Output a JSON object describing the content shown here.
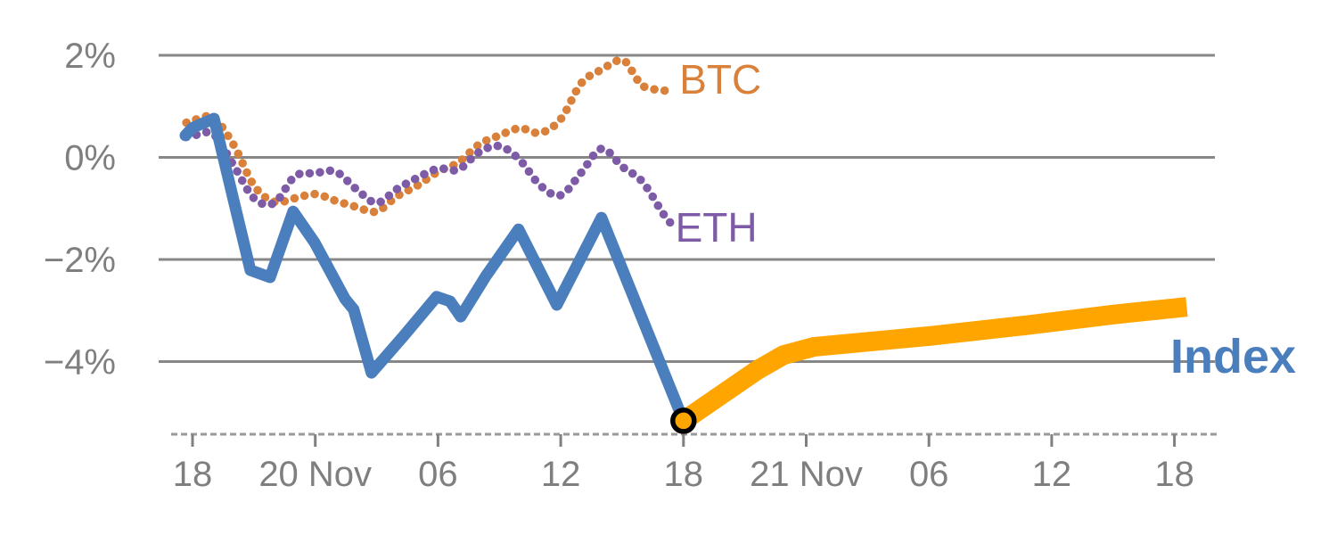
{
  "chart_data": {
    "type": "line",
    "title": "",
    "description": "Hourly percentage performance of BTC, ETH and an Index with a thick forecast line for the Index after 18:00 on 20 Nov",
    "background": "#ffffff",
    "x_axis": {
      "unit": "hours from 19 Nov 18:00",
      "tick_hours": [
        0,
        6,
        12,
        18,
        24,
        30,
        36,
        42,
        48
      ],
      "tick_labels": [
        "18",
        "20 Nov",
        "06",
        "12",
        "18",
        "21 Nov",
        "06",
        "12",
        "18"
      ],
      "style": "dashed-baseline"
    },
    "y_axis": {
      "tick_values": [
        2,
        0,
        -2,
        -4
      ],
      "tick_labels": [
        "2%",
        "0%",
        "−2%",
        "−4%"
      ],
      "range": [
        -5.6,
        2.6
      ],
      "grid": true
    },
    "colors": {
      "grid": "#878787",
      "axis_dash": "#9a9a9a",
      "tick": "#808080",
      "axis_text": "#7f7f7f",
      "btc": "#d9813a",
      "eth": "#7d5ba6",
      "index": "#4a7ebc",
      "forecast": "#ffa500",
      "marker_ring": "#000000"
    },
    "series": [
      {
        "name": "BTC",
        "style": "dotted",
        "color": "#d9813a",
        "points": [
          [
            -0.3,
            0.68
          ],
          [
            0,
            0.72
          ],
          [
            1,
            0.78
          ],
          [
            2,
            0.25
          ],
          [
            3,
            -0.55
          ],
          [
            4,
            -0.87
          ],
          [
            5,
            -0.8
          ],
          [
            6,
            -0.72
          ],
          [
            7,
            -0.85
          ],
          [
            8,
            -0.97
          ],
          [
            9,
            -1.06
          ],
          [
            10,
            -0.76
          ],
          [
            11,
            -0.55
          ],
          [
            12,
            -0.28
          ],
          [
            13,
            -0.1
          ],
          [
            14,
            0.25
          ],
          [
            15,
            0.43
          ],
          [
            16,
            0.57
          ],
          [
            17,
            0.48
          ],
          [
            18,
            0.75
          ],
          [
            19,
            1.45
          ],
          [
            20,
            1.72
          ],
          [
            21,
            1.91
          ],
          [
            21.6,
            1.62
          ],
          [
            22,
            1.4
          ],
          [
            23,
            1.31
          ],
          [
            23.5,
            1.35
          ]
        ]
      },
      {
        "name": "ETH",
        "style": "dotted",
        "color": "#7d5ba6",
        "points": [
          [
            -0.3,
            0.4
          ],
          [
            0,
            0.42
          ],
          [
            1,
            0.46
          ],
          [
            2,
            -0.15
          ],
          [
            3,
            -0.8
          ],
          [
            4,
            -0.89
          ],
          [
            5,
            -0.37
          ],
          [
            6,
            -0.31
          ],
          [
            7,
            -0.28
          ],
          [
            8,
            -0.62
          ],
          [
            9,
            -0.89
          ],
          [
            10,
            -0.62
          ],
          [
            11,
            -0.4
          ],
          [
            12,
            -0.22
          ],
          [
            13,
            -0.24
          ],
          [
            14,
            0.1
          ],
          [
            15,
            0.22
          ],
          [
            16,
            -0.05
          ],
          [
            17,
            -0.55
          ],
          [
            18,
            -0.74
          ],
          [
            19,
            -0.3
          ],
          [
            20,
            0.17
          ],
          [
            21,
            -0.18
          ],
          [
            22,
            -0.48
          ],
          [
            23,
            -1.1
          ],
          [
            23.4,
            -1.3
          ]
        ]
      },
      {
        "name": "Index",
        "style": "solid",
        "color": "#4a7ebc",
        "points": [
          [
            -0.35,
            0.43
          ],
          [
            0,
            0.58
          ],
          [
            1.05,
            0.76
          ],
          [
            2.83,
            -2.21
          ],
          [
            3.79,
            -2.35
          ],
          [
            4.92,
            -1.06
          ],
          [
            5.97,
            -1.67
          ],
          [
            7.45,
            -2.77
          ],
          [
            7.88,
            -2.98
          ],
          [
            8.75,
            -4.22
          ],
          [
            10.32,
            -3.5
          ],
          [
            11.93,
            -2.73
          ],
          [
            12.59,
            -2.82
          ],
          [
            13.11,
            -3.12
          ],
          [
            14.33,
            -2.33
          ],
          [
            15.94,
            -1.41
          ],
          [
            17.81,
            -2.89
          ],
          [
            19.99,
            -1.18
          ],
          [
            24,
            -5.16
          ]
        ]
      },
      {
        "name": "Index forecast",
        "style": "thick",
        "color": "#ffa500",
        "points": [
          [
            24,
            -5.16
          ],
          [
            27.6,
            -4.17
          ],
          [
            28.9,
            -3.87
          ],
          [
            30.4,
            -3.71
          ],
          [
            36,
            -3.5
          ],
          [
            40.7,
            -3.29
          ],
          [
            45,
            -3.08
          ],
          [
            48.6,
            -2.93
          ]
        ]
      }
    ],
    "marker": {
      "shape": "open-circle",
      "t": 24,
      "value": -5.16,
      "ring_color": "#000000",
      "fill": "#ffa500"
    },
    "labels": [
      {
        "text": "BTC",
        "color": "#d9813a",
        "t": 23.8,
        "v": 1.25,
        "size": 46,
        "weight": "normal"
      },
      {
        "text": "ETH",
        "color": "#7d5ba6",
        "t": 23.6,
        "v": -1.65,
        "size": 46,
        "weight": "normal"
      },
      {
        "text": "Index",
        "color": "#4a7ebc",
        "t": 47.8,
        "v": -4.22,
        "size": 54,
        "weight": "bold"
      }
    ]
  }
}
